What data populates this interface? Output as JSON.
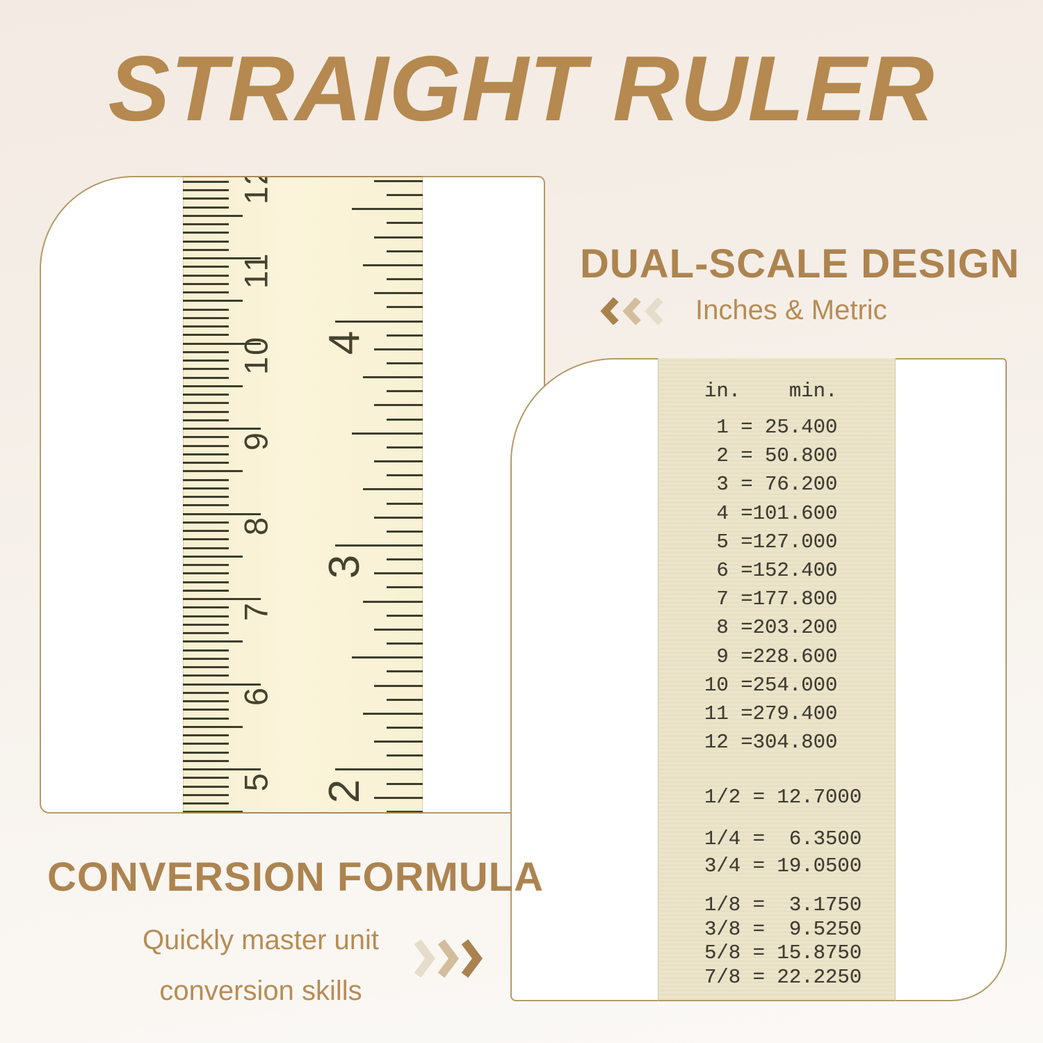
{
  "title": "STRAIGHT RULER",
  "sections": {
    "dual_scale": {
      "heading": "DUAL-SCALE DESIGN",
      "subtitle": "Inches & Metric",
      "chevron_direction": "left"
    },
    "conversion_formula": {
      "heading": "CONVERSION FORMULA",
      "subtitle_line1": "Quickly master unit",
      "subtitle_line2": "conversion skills",
      "chevron_direction": "right"
    }
  },
  "ruler_photo": {
    "cm_labels": [
      "12",
      "11",
      "10",
      "9",
      "8",
      "7",
      "6",
      "5"
    ],
    "inch_labels": [
      "4",
      "3",
      "2"
    ]
  },
  "conversion_table": {
    "col_header_inches": "in.",
    "col_header_mm": "min.",
    "whole_inch_rows": [
      {
        "in": "1",
        "mm": "25.400"
      },
      {
        "in": "2",
        "mm": "50.800"
      },
      {
        "in": "3",
        "mm": "76.200"
      },
      {
        "in": "4",
        "mm": "101.600"
      },
      {
        "in": "5",
        "mm": "127.000"
      },
      {
        "in": "6",
        "mm": "152.400"
      },
      {
        "in": "7",
        "mm": "177.800"
      },
      {
        "in": "8",
        "mm": "203.200"
      },
      {
        "in": "9",
        "mm": "228.600"
      },
      {
        "in": "10",
        "mm": "254.000"
      },
      {
        "in": "11",
        "mm": "279.400"
      },
      {
        "in": "12",
        "mm": "304.800"
      }
    ],
    "half_rows": [
      {
        "fr": "1/2",
        "mm": "12.7000"
      }
    ],
    "quarter_rows": [
      {
        "fr": "1/4",
        "mm": "6.3500"
      },
      {
        "fr": "3/4",
        "mm": "19.0500"
      }
    ],
    "eighth_rows": [
      {
        "fr": "1/8",
        "mm": "3.1750"
      },
      {
        "fr": "3/8",
        "mm": "9.5250"
      },
      {
        "fr": "5/8",
        "mm": "15.8750"
      },
      {
        "fr": "7/8",
        "mm": "22.2250"
      }
    ]
  },
  "colors": {
    "accent": "#b5894f",
    "heading": "#ad8450",
    "panel_border": "#b49a68",
    "ruler_strip_bg": "#faf3d7",
    "table_strip_bg": "#ece4c9",
    "ink": "#3f3d2e",
    "chevron_dark": "#a9824e",
    "chevron_mid": "#d3bd9c",
    "chevron_light": "#e6dccb"
  }
}
